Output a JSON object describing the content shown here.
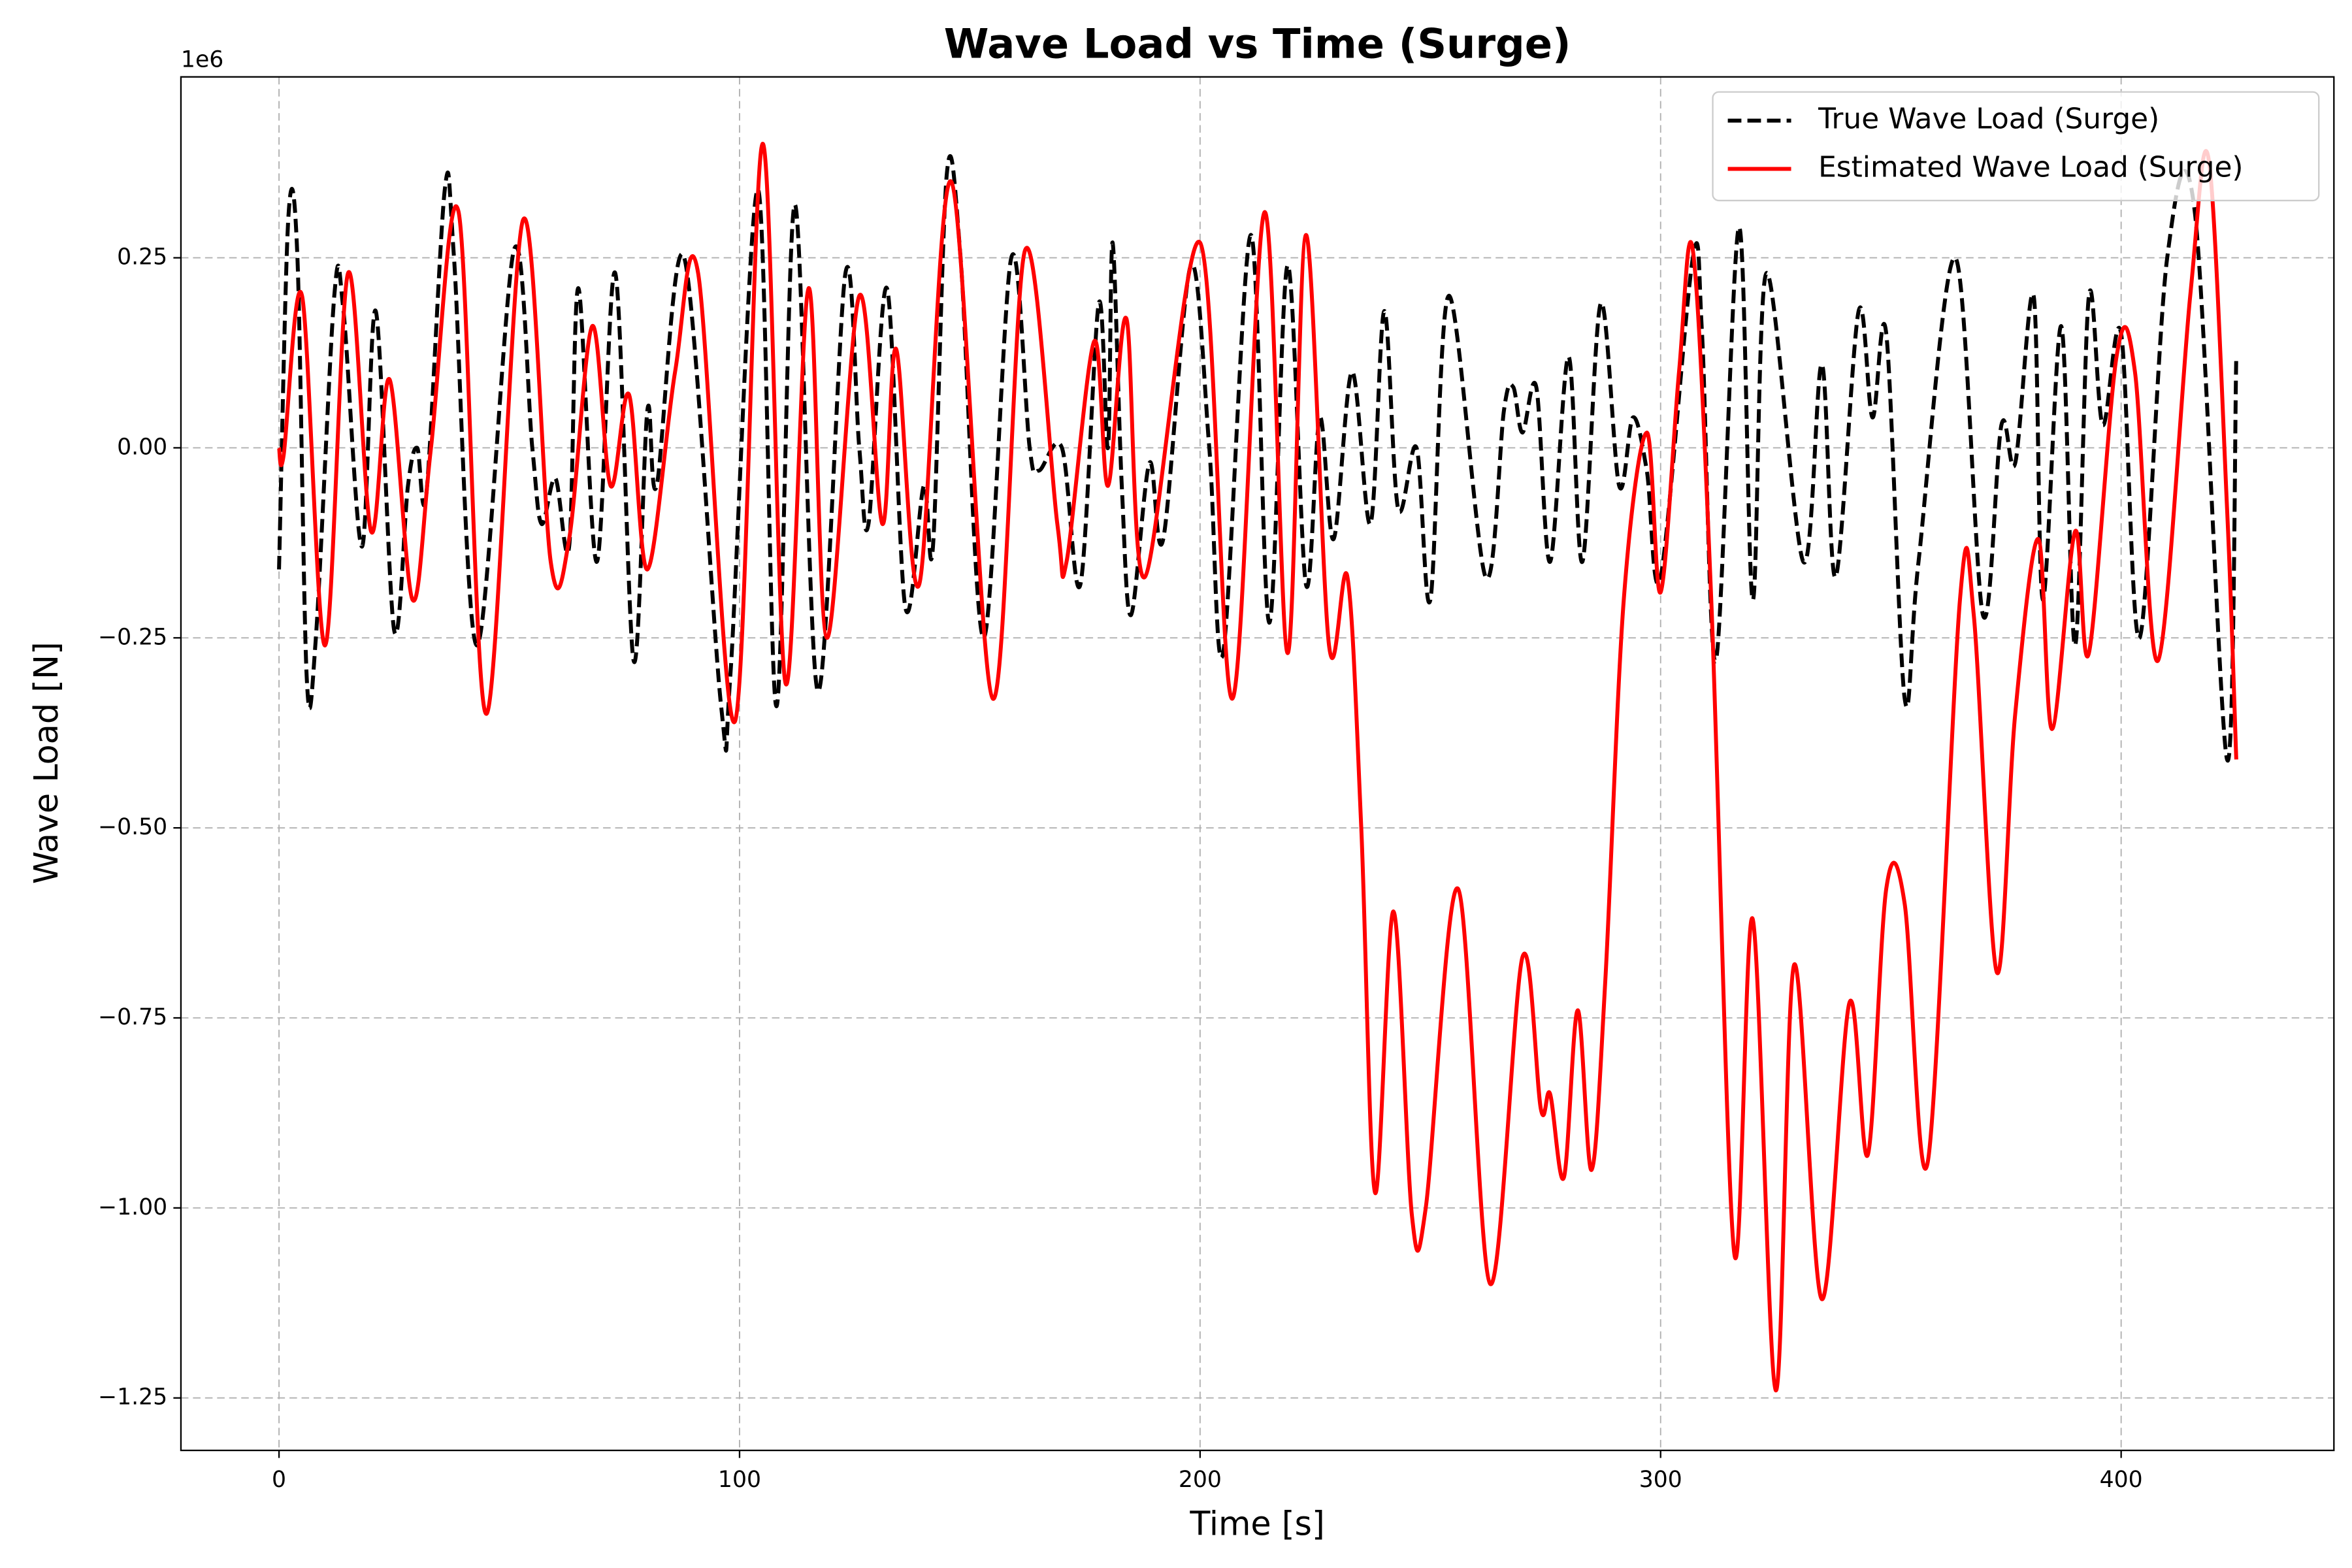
{
  "chart_data": {
    "type": "line",
    "title": "Wave Load vs Time (Surge)",
    "x_label": "Time [s]",
    "y_label": "Wave Load [N]",
    "y_offset_label": "1e6",
    "xlim": [
      -21.3,
      446.2
    ],
    "ylim": [
      -1.319,
      0.488
    ],
    "xticks": [
      0,
      100,
      200,
      300,
      400
    ],
    "yticks": [
      {
        "value": -1.25,
        "label": "−1.25"
      },
      {
        "value": -1.0,
        "label": "−1.00"
      },
      {
        "value": -0.75,
        "label": "−0.75"
      },
      {
        "value": -0.5,
        "label": "−0.50"
      },
      {
        "value": -0.25,
        "label": "−0.25"
      },
      {
        "value": 0,
        "label": "0.00"
      },
      {
        "value": 0.25,
        "label": "0.25"
      }
    ],
    "grid": true,
    "legend": "upper right",
    "series": [
      {
        "name": "True Wave Load (Surge)",
        "color": "#000000",
        "dash": true,
        "x": [
          0,
          2,
          4,
          6,
          8,
          12,
          14,
          18,
          21,
          25,
          28,
          30,
          32,
          36,
          38,
          43,
          51,
          55,
          57,
          60,
          63,
          65,
          69,
          73,
          77,
          80,
          82,
          88,
          96,
          98,
          104,
          108,
          112,
          117,
          123,
          126,
          128,
          132,
          136,
          140,
          142,
          145,
          148,
          153,
          159,
          163,
          165,
          170,
          174,
          178,
          180,
          181,
          183,
          185,
          189,
          192,
          198,
          202,
          205,
          211,
          215,
          219,
          223,
          226,
          229,
          233,
          237,
          240,
          243,
          247,
          250,
          254,
          262,
          266,
          268,
          270,
          273,
          276,
          280,
          283,
          287,
          291,
          294,
          297,
          300,
          307,
          309,
          312,
          317,
          320,
          323,
          331,
          335,
          338,
          343,
          346,
          349,
          353,
          356,
          364,
          370,
          374,
          377,
          381,
          383,
          387,
          390,
          393,
          396,
          400,
          404,
          410,
          416,
          423,
          425
        ],
        "values": [
          -0.16,
          0.3,
          0.25,
          -0.3,
          -0.25,
          0.2,
          0.18,
          -0.13,
          0.18,
          -0.24,
          -0.05,
          0.0,
          -0.06,
          0.34,
          0.25,
          -0.26,
          0.26,
          0.0,
          -0.1,
          -0.04,
          -0.13,
          0.21,
          -0.15,
          0.23,
          -0.28,
          0.05,
          -0.05,
          0.25,
          -0.34,
          -0.3,
          0.34,
          -0.34,
          0.32,
          -0.32,
          0.23,
          0.0,
          -0.1,
          0.21,
          -0.21,
          -0.05,
          -0.13,
          0.36,
          0.25,
          -0.25,
          0.25,
          0.0,
          -0.03,
          0.0,
          -0.18,
          0.19,
          0.0,
          0.27,
          -0.05,
          -0.22,
          -0.02,
          -0.12,
          0.24,
          0.0,
          -0.27,
          0.28,
          -0.23,
          0.24,
          -0.18,
          0.04,
          -0.12,
          0.1,
          -0.1,
          0.18,
          -0.08,
          0.0,
          -0.2,
          0.2,
          -0.17,
          0.05,
          0.08,
          0.02,
          0.08,
          -0.15,
          0.12,
          -0.15,
          0.19,
          -0.05,
          0.04,
          -0.03,
          -0.17,
          0.25,
          0.15,
          -0.28,
          0.29,
          -0.2,
          0.23,
          -0.15,
          0.11,
          -0.17,
          0.18,
          0.04,
          0.15,
          -0.33,
          -0.15,
          0.25,
          -0.22,
          0.03,
          -0.02,
          0.2,
          -0.2,
          0.16,
          -0.26,
          0.2,
          0.03,
          0.15,
          -0.25,
          0.25,
          0.31,
          -0.41,
          0.12
        ]
      },
      {
        "name": "Estimated Wave Load (Surge)",
        "color": "#ff0000",
        "dash": false,
        "x": [
          0,
          1,
          5,
          10,
          15,
          20,
          24,
          29,
          33,
          39,
          45,
          53,
          59,
          63,
          68,
          72,
          76,
          80,
          86,
          91,
          99,
          105,
          110,
          115,
          119,
          126,
          131,
          134,
          139,
          146,
          155,
          162,
          169,
          171,
          177,
          180,
          184,
          188,
          200,
          207,
          214,
          219,
          223,
          228,
          232,
          235,
          238,
          242,
          246,
          249,
          256,
          263,
          270,
          274,
          276,
          279,
          282,
          285,
          288,
          292,
          297,
          300,
          304,
          307,
          311,
          316,
          320,
          325,
          329,
          335,
          341,
          345,
          349,
          353,
          358,
          365,
          368,
          373,
          377,
          382,
          385,
          390,
          393,
          399,
          403,
          408,
          415,
          419,
          423,
          425
        ],
        "values": [
          0.0,
          -0.01,
          0.2,
          -0.26,
          0.23,
          -0.11,
          0.09,
          -0.2,
          0.0,
          0.31,
          -0.35,
          0.3,
          -0.15,
          -0.12,
          0.16,
          -0.05,
          0.07,
          -0.16,
          0.1,
          0.23,
          -0.36,
          0.4,
          -0.31,
          0.21,
          -0.25,
          0.2,
          -0.1,
          0.13,
          -0.18,
          0.35,
          -0.33,
          0.26,
          -0.1,
          -0.15,
          0.14,
          -0.05,
          0.17,
          -0.17,
          0.27,
          -0.33,
          0.31,
          -0.27,
          0.28,
          -0.26,
          -0.17,
          -0.5,
          -0.98,
          -0.61,
          -1.01,
          -1.0,
          -0.58,
          -1.1,
          -0.67,
          -0.87,
          -0.85,
          -0.96,
          -0.74,
          -0.95,
          -0.7,
          -0.2,
          0.02,
          -0.19,
          0.1,
          0.26,
          -0.2,
          -1.06,
          -0.62,
          -1.24,
          -0.68,
          -1.12,
          -0.73,
          -0.93,
          -0.58,
          -0.6,
          -0.94,
          -0.2,
          -0.22,
          -0.69,
          -0.35,
          -0.12,
          -0.37,
          -0.11,
          -0.27,
          0.12,
          0.1,
          -0.28,
          0.2,
          0.38,
          -0.08,
          -0.41
        ]
      }
    ]
  }
}
